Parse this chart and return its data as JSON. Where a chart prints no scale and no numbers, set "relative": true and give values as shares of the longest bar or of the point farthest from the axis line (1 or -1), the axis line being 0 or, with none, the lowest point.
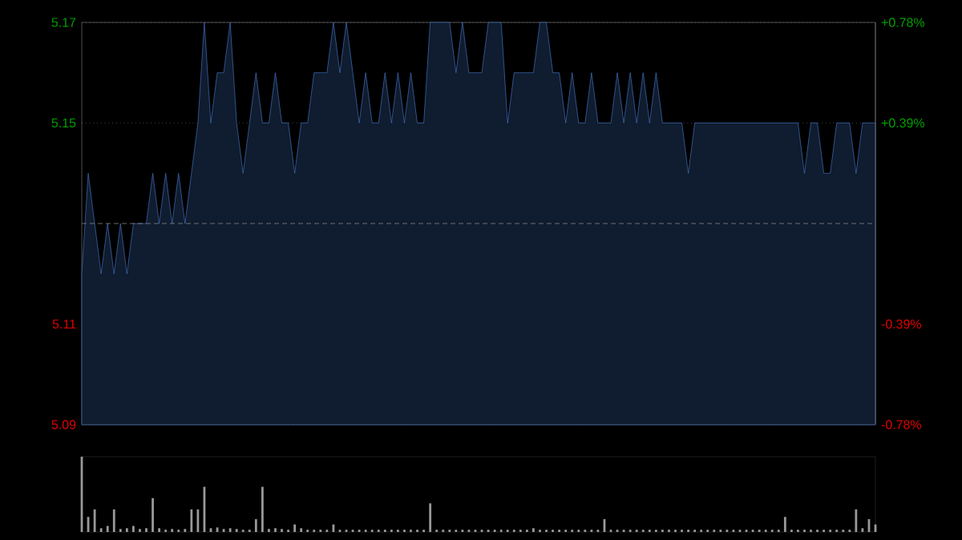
{
  "chart_data": [
    {
      "type": "area",
      "categories": [
        null,
        null,
        null,
        null,
        null,
        null,
        null,
        null,
        null,
        null,
        null,
        null,
        null,
        null,
        null,
        null,
        null,
        null,
        null,
        null,
        null,
        null,
        null,
        null,
        null,
        null,
        null,
        null,
        null,
        null,
        null,
        null,
        null,
        null,
        null,
        null,
        null,
        null,
        null,
        null,
        null,
        null,
        null,
        null,
        null,
        null,
        null,
        null,
        null,
        null,
        null,
        null,
        null,
        null,
        null,
        null,
        null,
        null,
        null,
        null,
        null,
        null,
        null,
        null,
        null,
        null,
        null,
        null,
        null,
        null,
        null,
        null,
        null,
        null,
        null,
        null,
        null,
        null,
        null,
        null,
        null,
        null,
        null,
        null,
        null,
        null,
        null,
        null,
        null,
        null,
        null,
        null,
        null,
        null,
        null,
        null,
        null,
        null,
        null,
        null,
        null,
        null,
        null,
        null,
        null,
        null,
        null,
        null,
        null,
        null,
        null,
        null,
        null,
        null,
        null,
        null,
        null,
        null,
        null,
        null,
        null,
        null,
        null,
        null
      ],
      "values": [
        5.12,
        5.14,
        5.13,
        5.12,
        5.13,
        5.12,
        5.13,
        5.12,
        5.13,
        5.13,
        5.13,
        5.14,
        5.13,
        5.14,
        5.13,
        5.14,
        5.13,
        5.14,
        5.15,
        5.17,
        5.15,
        5.16,
        5.16,
        5.17,
        5.15,
        5.14,
        5.15,
        5.16,
        5.15,
        5.15,
        5.16,
        5.15,
        5.15,
        5.14,
        5.15,
        5.15,
        5.16,
        5.16,
        5.16,
        5.17,
        5.16,
        5.17,
        5.16,
        5.15,
        5.16,
        5.15,
        5.15,
        5.16,
        5.15,
        5.16,
        5.15,
        5.16,
        5.15,
        5.15,
        5.17,
        5.17,
        5.17,
        5.17,
        5.16,
        5.17,
        5.16,
        5.16,
        5.16,
        5.17,
        5.17,
        5.17,
        5.15,
        5.16,
        5.16,
        5.16,
        5.16,
        5.17,
        5.17,
        5.16,
        5.16,
        5.15,
        5.16,
        5.15,
        5.15,
        5.16,
        5.15,
        5.15,
        5.15,
        5.16,
        5.15,
        5.16,
        5.15,
        5.16,
        5.15,
        5.16,
        5.15,
        5.15,
        5.15,
        5.15,
        5.14,
        5.15,
        5.15,
        5.15,
        5.15,
        5.15,
        5.15,
        5.15,
        5.15,
        5.15,
        5.15,
        5.15,
        5.15,
        5.15,
        5.15,
        5.15,
        5.15,
        5.15,
        5.14,
        5.15,
        5.15,
        5.14,
        5.14,
        5.15,
        5.15,
        5.15,
        5.14,
        5.15,
        5.15,
        5.15
      ],
      "color": "#4a7fd6",
      "ylim": [
        5.09,
        5.17
      ],
      "yticks": [
        5.09,
        5.11,
        5.15,
        5.17
      ],
      "y2lim": [
        -0.78,
        0.78
      ],
      "y2ticks": [
        {
          "value": -0.78,
          "label": "-0.78%"
        },
        {
          "value": -0.39,
          "label": "-0.39%"
        },
        {
          "value": 0.39,
          "label": "+0.39%"
        },
        {
          "value": 0.78,
          "label": "+0.78%"
        }
      ],
      "ref_lines": [
        {
          "axis": "y",
          "value": 5.13,
          "color": "#888888",
          "line_style": "dashed"
        }
      ],
      "grid": "y"
    },
    {
      "type": "bar",
      "relative": true,
      "color": "#999999",
      "categories": [
        null,
        null,
        null,
        null,
        null,
        null,
        null,
        null,
        null,
        null,
        null,
        null,
        null,
        null,
        null,
        null,
        null,
        null,
        null,
        null,
        null,
        null,
        null,
        null,
        null,
        null,
        null,
        null,
        null,
        null,
        null,
        null,
        null,
        null,
        null,
        null,
        null,
        null,
        null,
        null,
        null,
        null,
        null,
        null,
        null,
        null,
        null,
        null,
        null,
        null,
        null,
        null,
        null,
        null,
        null,
        null,
        null,
        null,
        null,
        null,
        null,
        null,
        null,
        null,
        null,
        null,
        null,
        null,
        null,
        null,
        null,
        null,
        null,
        null,
        null,
        null,
        null,
        null,
        null,
        null,
        null,
        null,
        null,
        null,
        null,
        null,
        null,
        null,
        null,
        null,
        null,
        null,
        null,
        null,
        null,
        null,
        null,
        null,
        null,
        null,
        null,
        null,
        null,
        null,
        null,
        null,
        null,
        null,
        null,
        null,
        null,
        null,
        null,
        null,
        null,
        null,
        null,
        null,
        null,
        null,
        null,
        null,
        null,
        null
      ],
      "values": [
        1,
        0.2,
        0.3,
        0.05,
        0.08,
        0.3,
        0.04,
        0.05,
        0.08,
        0.04,
        0.05,
        0.45,
        0.05,
        0.03,
        0.04,
        0.03,
        0.04,
        0.3,
        0.3,
        0.6,
        0.05,
        0.06,
        0.04,
        0.05,
        0.04,
        0.03,
        0.03,
        0.17,
        0.6,
        0.04,
        0.05,
        0.04,
        0.03,
        0.1,
        0.05,
        0.03,
        0.03,
        0.03,
        0.03,
        0.1,
        0.03,
        0.03,
        0.03,
        0.03,
        0.03,
        0.03,
        0.03,
        0.03,
        0.03,
        0.03,
        0.03,
        0.03,
        0.03,
        0.03,
        0.38,
        0.03,
        0.03,
        0.03,
        0.03,
        0.03,
        0.03,
        0.03,
        0.03,
        0.03,
        0.03,
        0.03,
        0.03,
        0.03,
        0.03,
        0.03,
        0.05,
        0.03,
        0.03,
        0.03,
        0.03,
        0.03,
        0.03,
        0.03,
        0.03,
        0.03,
        0.03,
        0.17,
        0.03,
        0.03,
        0.03,
        0.03,
        0.03,
        0.03,
        0.03,
        0.03,
        0.03,
        0.03,
        0.03,
        0.03,
        0.03,
        0.03,
        0.03,
        0.03,
        0.03,
        0.03,
        0.03,
        0.03,
        0.03,
        0.03,
        0.03,
        0.03,
        0.03,
        0.03,
        0.03,
        0.2,
        0.03,
        0.03,
        0.03,
        0.03,
        0.03,
        0.03,
        0.03,
        0.03,
        0.03,
        0.03,
        0.3,
        0.05,
        0.17,
        0.1
      ]
    }
  ]
}
